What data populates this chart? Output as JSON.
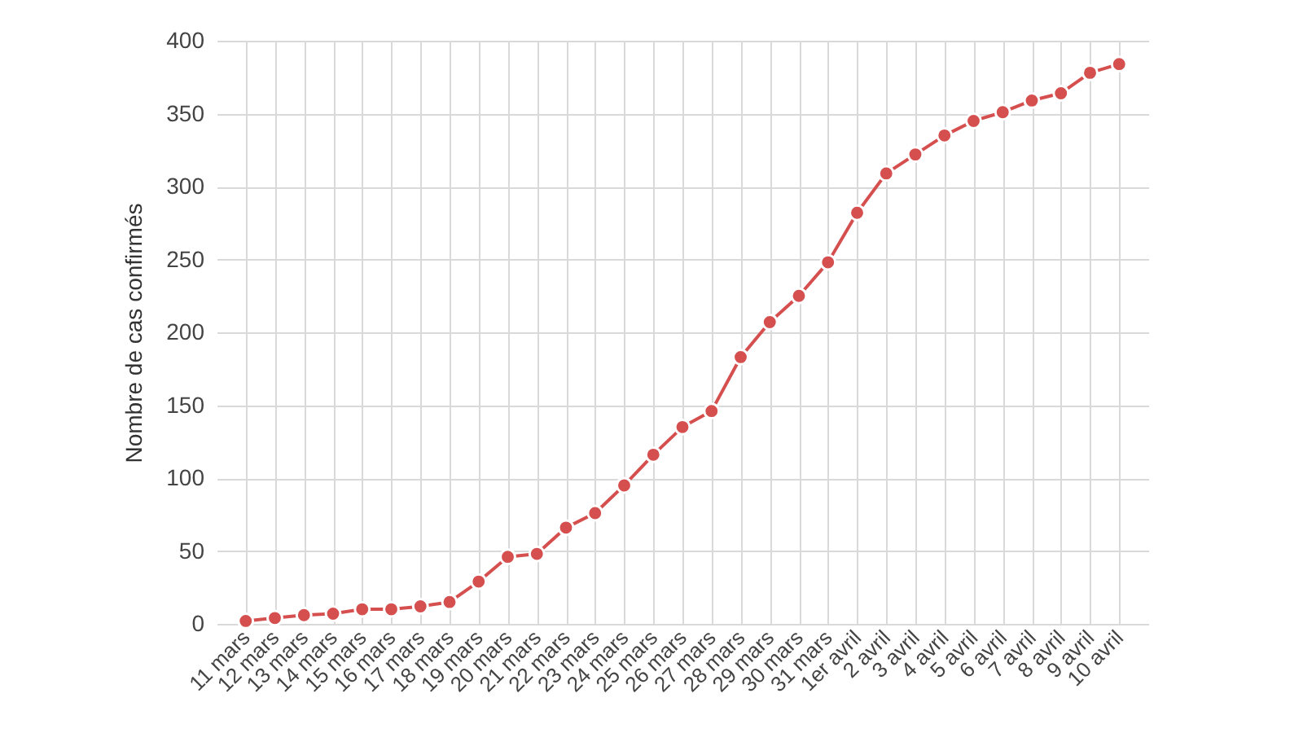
{
  "chart_data": {
    "type": "line",
    "ylabel": "Nombre de cas confirmés",
    "categories": [
      "11 mars",
      "12 mars",
      "13 mars",
      "14 mars",
      "15 mars",
      "16 mars",
      "17 mars",
      "18 mars",
      "19 mars",
      "20 mars",
      "21 mars",
      "22 mars",
      "23 mars",
      "24 mars",
      "25 mars",
      "26 mars",
      "27 mars",
      "28 mars",
      "29 mars",
      "30 mars",
      "31 mars",
      "1er avril",
      "2 avril",
      "3 avril",
      "4 avril",
      "5 avril",
      "6 avril",
      "7 avril",
      "8 avril",
      "9 avril",
      "10 avril"
    ],
    "series": [
      {
        "color": "#d54f4f",
        "values": [
          2,
          4,
          6,
          7,
          10,
          10,
          12,
          15,
          29,
          46,
          48,
          66,
          76,
          95,
          116,
          135,
          146,
          183,
          207,
          225,
          248,
          282,
          309,
          322,
          335,
          345,
          351,
          359,
          364,
          378,
          384
        ]
      }
    ],
    "ylim": [
      0,
      400
    ],
    "yticks": [
      0,
      50,
      100,
      150,
      200,
      250,
      300,
      350,
      400
    ],
    "grid": true,
    "marker": "circle",
    "line_style": "solid"
  }
}
